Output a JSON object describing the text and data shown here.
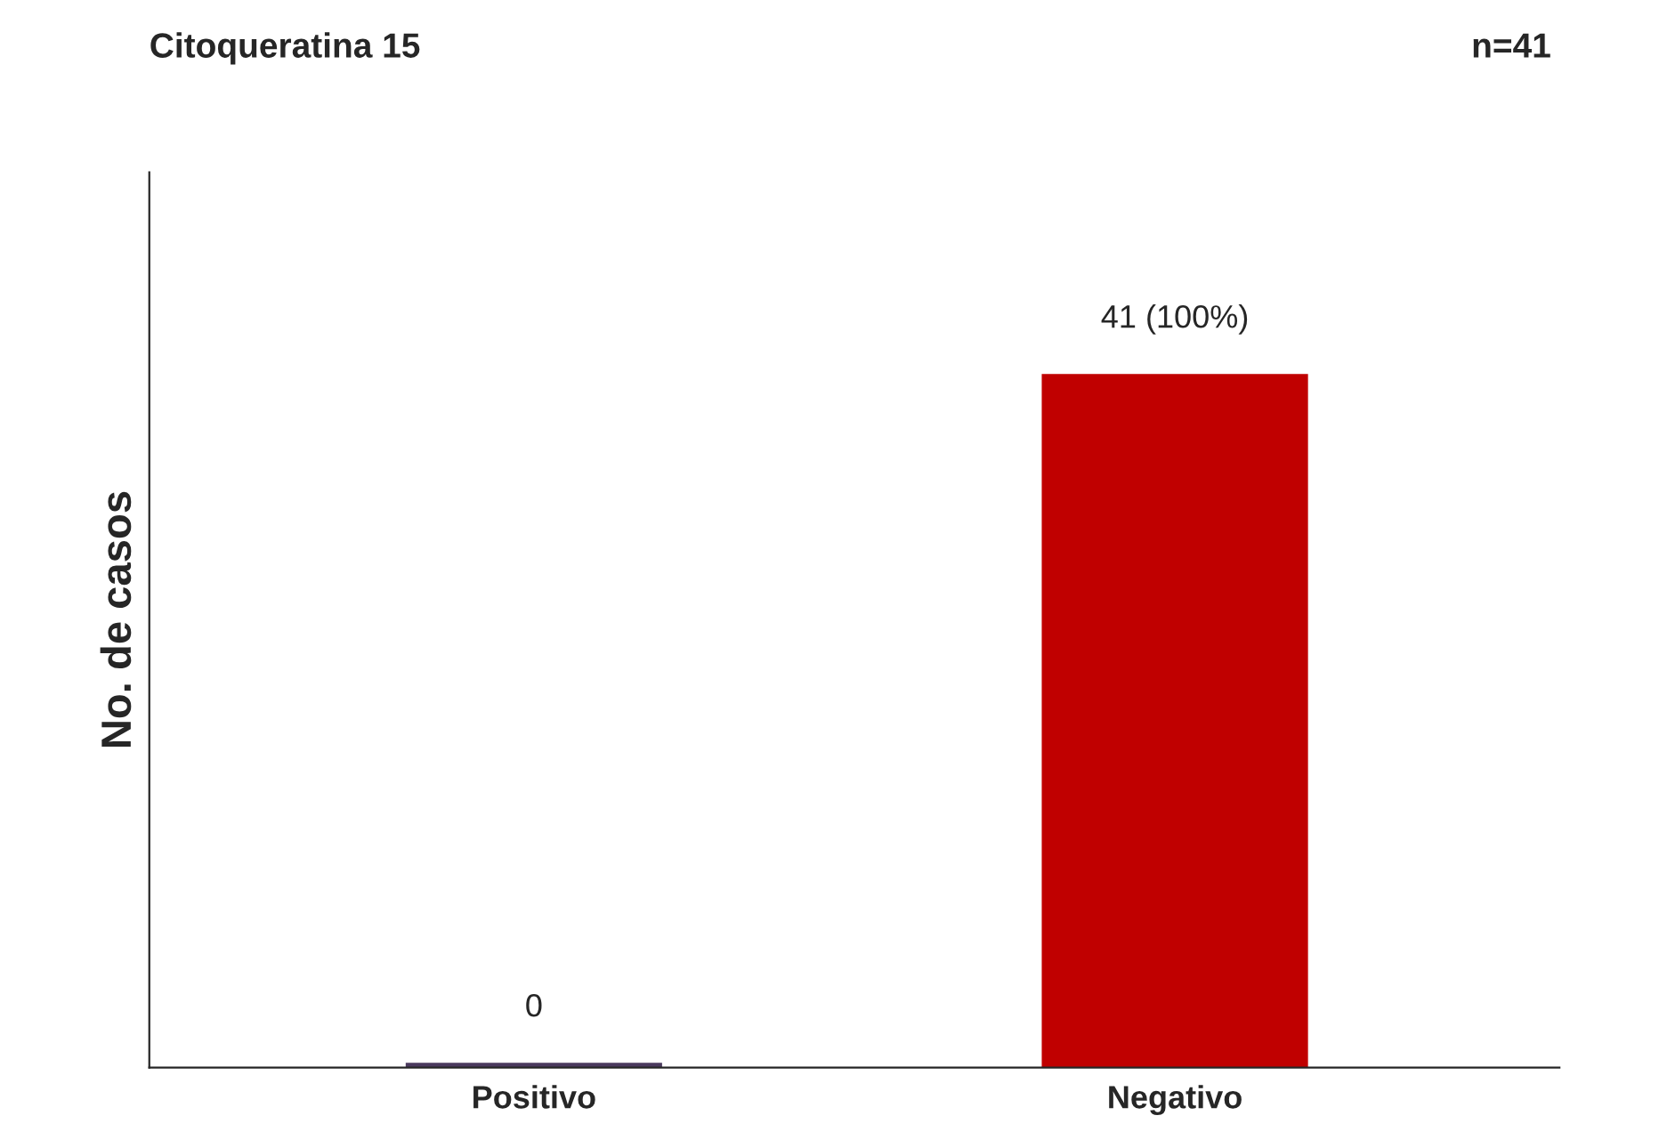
{
  "chart_data": {
    "type": "bar",
    "title": "Citoqueratina 15",
    "ylabel": "No. de casos",
    "annotations": [
      "n=41"
    ],
    "categories": [
      "Positivo",
      "Negativo"
    ],
    "values": [
      0,
      41
    ],
    "colors": [
      "#4b3a5e",
      "#c00000"
    ],
    "value_labels": [
      "0",
      "41 (100%)"
    ],
    "tick_labels": "x",
    "grid": false
  }
}
